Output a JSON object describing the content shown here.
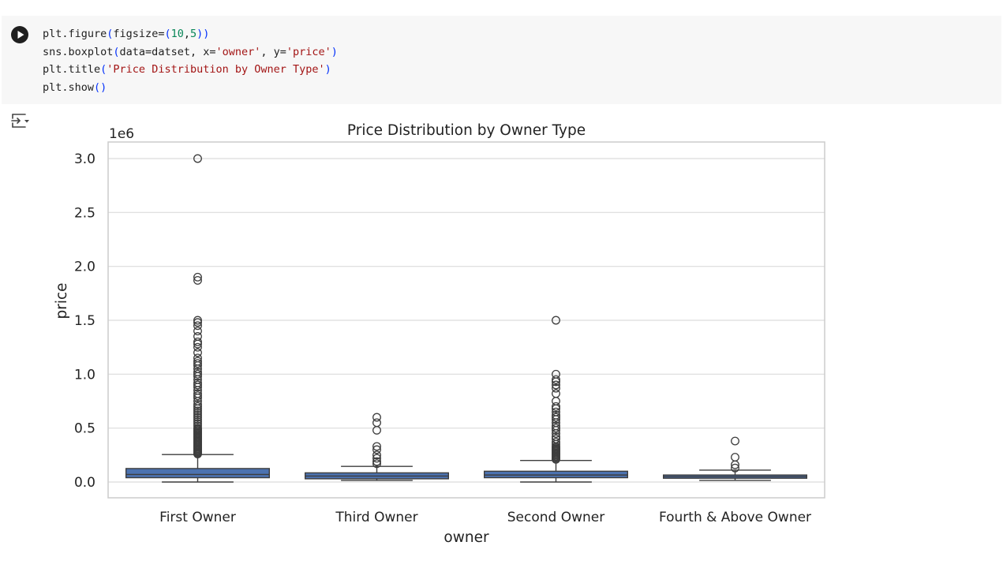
{
  "code_cell": {
    "lines": [
      [
        {
          "t": "plt.figure",
          "c": "p"
        },
        {
          "t": "(",
          "c": "br"
        },
        {
          "t": "figsize=",
          "c": "p"
        },
        {
          "t": "(",
          "c": "br"
        },
        {
          "t": "10",
          "c": "n"
        },
        {
          "t": ",",
          "c": "p"
        },
        {
          "t": "5",
          "c": "n"
        },
        {
          "t": "))",
          "c": "br"
        }
      ],
      [
        {
          "t": "sns.boxplot",
          "c": "p"
        },
        {
          "t": "(",
          "c": "br"
        },
        {
          "t": "data=datset, x=",
          "c": "p"
        },
        {
          "t": "'owner'",
          "c": "s"
        },
        {
          "t": ", y=",
          "c": "p"
        },
        {
          "t": "'price'",
          "c": "s"
        },
        {
          "t": ")",
          "c": "br"
        }
      ],
      [
        {
          "t": "plt.title",
          "c": "p"
        },
        {
          "t": "(",
          "c": "br"
        },
        {
          "t": "'Price Distribution by Owner Type'",
          "c": "s"
        },
        {
          "t": ")",
          "c": "br"
        }
      ],
      [
        {
          "t": "plt.show",
          "c": "p"
        },
        {
          "t": "()",
          "c": "br"
        }
      ]
    ]
  },
  "colors": {
    "box_fill": "#4c72b0",
    "grid": "#dcdcdc",
    "frame": "#cccccc",
    "code_bg": "#f7f7f7"
  },
  "icons": {
    "run": "play-circle-icon",
    "output": "output-toggle-icon"
  },
  "chart_data": {
    "type": "box",
    "title": "Price Distribution by Owner Type",
    "xlabel": "owner",
    "ylabel": "price",
    "y_offset_label": "1e6",
    "ylim": [
      -0.145,
      3.155
    ],
    "yticks": [
      0.0,
      0.5,
      1.0,
      1.5,
      2.0,
      2.5,
      3.0
    ],
    "ytick_labels": [
      "0.0",
      "0.5",
      "1.0",
      "1.5",
      "2.0",
      "2.5",
      "3.0"
    ],
    "grid": true,
    "categories": [
      "First Owner",
      "Third Owner",
      "Second Owner",
      "Fourth & Above Owner"
    ],
    "boxes": [
      {
        "name": "First Owner",
        "whislo": 0.0,
        "q1": 0.04,
        "median": 0.07,
        "q3": 0.125,
        "whishi": 0.255,
        "fliers": [
          0.26,
          0.27,
          0.28,
          0.29,
          0.3,
          0.31,
          0.32,
          0.33,
          0.34,
          0.35,
          0.36,
          0.37,
          0.38,
          0.39,
          0.4,
          0.41,
          0.42,
          0.43,
          0.44,
          0.45,
          0.46,
          0.47,
          0.48,
          0.49,
          0.5,
          0.52,
          0.54,
          0.56,
          0.58,
          0.6,
          0.62,
          0.64,
          0.66,
          0.68,
          0.7,
          0.72,
          0.75,
          0.78,
          0.8,
          0.82,
          0.85,
          0.88,
          0.9,
          0.92,
          0.95,
          0.98,
          1.0,
          1.02,
          1.05,
          1.08,
          1.1,
          1.12,
          1.15,
          1.2,
          1.25,
          1.28,
          1.3,
          1.35,
          1.4,
          1.45,
          1.48,
          1.5,
          1.87,
          1.9,
          3.0
        ]
      },
      {
        "name": "Third Owner",
        "whislo": 0.015,
        "q1": 0.03,
        "median": 0.055,
        "q3": 0.085,
        "whishi": 0.145,
        "fliers": [
          0.17,
          0.19,
          0.22,
          0.25,
          0.3,
          0.33,
          0.48,
          0.55,
          0.6
        ]
      },
      {
        "name": "Second Owner",
        "whislo": 0.0,
        "q1": 0.04,
        "median": 0.065,
        "q3": 0.1,
        "whishi": 0.2,
        "fliers": [
          0.21,
          0.22,
          0.23,
          0.24,
          0.25,
          0.26,
          0.27,
          0.28,
          0.29,
          0.3,
          0.31,
          0.32,
          0.33,
          0.35,
          0.37,
          0.4,
          0.42,
          0.45,
          0.48,
          0.5,
          0.52,
          0.55,
          0.58,
          0.6,
          0.62,
          0.65,
          0.68,
          0.7,
          0.75,
          0.82,
          0.87,
          0.9,
          0.93,
          0.95,
          1.0,
          1.5
        ]
      },
      {
        "name": "Fourth & Above Owner",
        "whislo": 0.015,
        "q1": 0.035,
        "median": 0.05,
        "q3": 0.065,
        "whishi": 0.11,
        "fliers": [
          0.13,
          0.16,
          0.23,
          0.38
        ]
      }
    ]
  }
}
